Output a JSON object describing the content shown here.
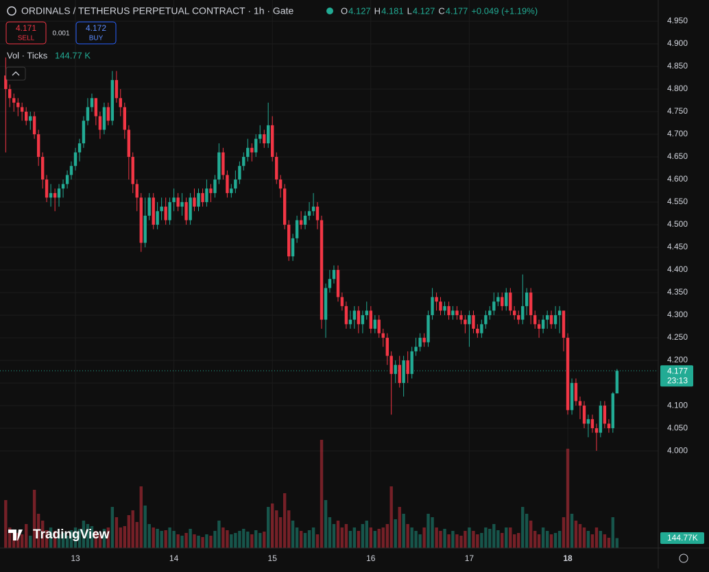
{
  "chart_data": {
    "type": "candlestick",
    "title": "ORDINALS / TETHERUS PERPETUAL CONTRACT · 1h · Gate",
    "legend_ohlc": [
      {
        "key": "O",
        "value": 4.127
      },
      {
        "key": "H",
        "value": 4.181
      },
      {
        "key": "L",
        "value": 4.127
      },
      {
        "key": "C",
        "value": 4.177
      }
    ],
    "change": "+0.049 (+1.19%)",
    "sell": {
      "price": "4.171",
      "label": "SELL"
    },
    "spread": "0.001",
    "buy": {
      "price": "4.172",
      "label": "BUY"
    },
    "volume_legend": {
      "name": "Vol · Ticks",
      "value": "144.77 K"
    },
    "volume_badge": "144.77K",
    "countdown": "23:13",
    "logo": "TradingView",
    "up_color": "#22ab94",
    "down_color": "#f23645",
    "grid": true,
    "xlim": [
      12.234,
      18.919
    ],
    "ylim": [
      3.785,
      4.997
    ],
    "xticks": [
      13,
      14,
      15,
      16,
      17,
      18
    ],
    "yticks": [
      {
        "value": 4.0,
        "label": "4.000"
      },
      {
        "value": 4.05,
        "label": "4.050"
      },
      {
        "value": 4.1,
        "label": "4.100"
      },
      {
        "value": 4.15,
        "label": "4.150"
      },
      {
        "value": 4.2,
        "label": "4.200"
      },
      {
        "value": 4.25,
        "label": "4.250"
      },
      {
        "value": 4.3,
        "label": "4.300"
      },
      {
        "value": 4.35,
        "label": "4.350"
      },
      {
        "value": 4.4,
        "label": "4.400"
      },
      {
        "value": 4.45,
        "label": "4.450"
      },
      {
        "value": 4.5,
        "label": "4.500"
      },
      {
        "value": 4.55,
        "label": "4.550"
      },
      {
        "value": 4.6,
        "label": "4.600"
      },
      {
        "value": 4.65,
        "label": "4.650"
      },
      {
        "value": 4.7,
        "label": "4.700"
      },
      {
        "value": 4.75,
        "label": "4.750"
      },
      {
        "value": 4.8,
        "label": "4.800"
      },
      {
        "value": 4.85,
        "label": "4.850"
      },
      {
        "value": 4.9,
        "label": "4.900"
      },
      {
        "value": 4.95,
        "label": "4.950"
      }
    ],
    "x": [
      12.292,
      12.333,
      12.375,
      12.417,
      12.458,
      12.5,
      12.542,
      12.583,
      12.625,
      12.667,
      12.708,
      12.75,
      12.792,
      12.833,
      12.875,
      12.917,
      12.958,
      13,
      13.042,
      13.083,
      13.125,
      13.167,
      13.208,
      13.25,
      13.292,
      13.333,
      13.375,
      13.417,
      13.458,
      13.5,
      13.542,
      13.583,
      13.625,
      13.667,
      13.708,
      13.75,
      13.792,
      13.833,
      13.875,
      13.917,
      13.958,
      14,
      14.042,
      14.083,
      14.125,
      14.167,
      14.208,
      14.25,
      14.292,
      14.333,
      14.375,
      14.417,
      14.458,
      14.5,
      14.542,
      14.583,
      14.625,
      14.667,
      14.708,
      14.75,
      14.792,
      14.833,
      14.875,
      14.917,
      14.958,
      15,
      15.042,
      15.083,
      15.125,
      15.167,
      15.208,
      15.25,
      15.292,
      15.333,
      15.375,
      15.417,
      15.458,
      15.5,
      15.542,
      15.583,
      15.625,
      15.667,
      15.708,
      15.75,
      15.792,
      15.833,
      15.875,
      15.917,
      15.958,
      16,
      16.042,
      16.083,
      16.125,
      16.167,
      16.208,
      16.25,
      16.292,
      16.333,
      16.375,
      16.417,
      16.458,
      16.5,
      16.542,
      16.583,
      16.625,
      16.667,
      16.708,
      16.75,
      16.792,
      16.833,
      16.875,
      16.917,
      16.958,
      17,
      17.042,
      17.083,
      17.125,
      17.167,
      17.208,
      17.25,
      17.292,
      17.333,
      17.375,
      17.417,
      17.458,
      17.5,
      17.542,
      17.583,
      17.625,
      17.667,
      17.708,
      17.75,
      17.792,
      17.833,
      17.875,
      17.917,
      17.958,
      18,
      18.042,
      18.083,
      18.125,
      18.167,
      18.208,
      18.25,
      18.292,
      18.333,
      18.375,
      18.417,
      18.458,
      18.5
    ],
    "open": [
      4.83,
      4.8,
      4.78,
      4.77,
      4.76,
      4.75,
      4.73,
      4.74,
      4.7,
      4.65,
      4.6,
      4.56,
      4.57,
      4.56,
      4.58,
      4.59,
      4.61,
      4.63,
      4.66,
      4.68,
      4.73,
      4.76,
      4.78,
      4.74,
      4.71,
      4.76,
      4.73,
      4.82,
      4.78,
      4.76,
      4.71,
      4.65,
      4.59,
      4.56,
      4.46,
      4.52,
      4.56,
      4.5,
      4.53,
      4.54,
      4.51,
      4.55,
      4.56,
      4.54,
      4.55,
      4.51,
      4.56,
      4.54,
      4.57,
      4.55,
      4.58,
      4.57,
      4.6,
      4.66,
      4.61,
      4.57,
      4.58,
      4.6,
      4.63,
      4.65,
      4.67,
      4.66,
      4.69,
      4.7,
      4.68,
      4.72,
      4.65,
      4.6,
      4.58,
      4.5,
      4.43,
      4.47,
      4.51,
      4.5,
      4.52,
      4.53,
      4.54,
      4.51,
      4.29,
      4.36,
      4.38,
      4.4,
      4.34,
      4.32,
      4.28,
      4.29,
      4.31,
      4.28,
      4.3,
      4.31,
      4.27,
      4.29,
      4.26,
      4.25,
      4.21,
      4.17,
      4.19,
      4.15,
      4.2,
      4.17,
      4.22,
      4.23,
      4.25,
      4.24,
      4.3,
      4.34,
      4.33,
      4.31,
      4.32,
      4.3,
      4.31,
      4.3,
      4.29,
      4.28,
      4.3,
      4.27,
      4.26,
      4.28,
      4.3,
      4.31,
      4.33,
      4.34,
      4.32,
      4.35,
      4.31,
      4.3,
      4.29,
      4.32,
      4.35,
      4.3,
      4.28,
      4.27,
      4.29,
      4.3,
      4.28,
      4.3,
      4.31,
      4.25,
      4.09,
      4.15,
      4.11,
      4.1,
      4.06,
      4.07,
      4.05,
      4.04,
      4.1,
      4.06,
      4.05,
      4.127
    ],
    "high": [
      4.87,
      4.81,
      4.79,
      4.78,
      4.77,
      4.76,
      4.75,
      4.75,
      4.71,
      4.66,
      4.61,
      4.59,
      4.58,
      4.59,
      4.6,
      4.62,
      4.64,
      4.67,
      4.69,
      4.74,
      4.78,
      4.79,
      4.78,
      4.75,
      4.77,
      4.77,
      4.84,
      4.84,
      4.8,
      4.77,
      4.72,
      4.66,
      4.6,
      4.57,
      4.56,
      4.57,
      4.57,
      4.55,
      4.56,
      4.56,
      4.56,
      4.58,
      4.57,
      4.57,
      4.56,
      4.57,
      4.58,
      4.58,
      4.58,
      4.6,
      4.59,
      4.61,
      4.68,
      4.67,
      4.62,
      4.59,
      4.62,
      4.64,
      4.66,
      4.69,
      4.68,
      4.7,
      4.72,
      4.71,
      4.77,
      4.74,
      4.66,
      4.61,
      4.59,
      4.51,
      4.48,
      4.52,
      4.53,
      4.53,
      4.55,
      4.57,
      4.55,
      4.52,
      4.37,
      4.4,
      4.41,
      4.41,
      4.35,
      4.33,
      4.31,
      4.32,
      4.32,
      4.31,
      4.33,
      4.32,
      4.3,
      4.3,
      4.27,
      4.26,
      4.22,
      4.2,
      4.21,
      4.21,
      4.22,
      4.23,
      4.25,
      4.26,
      4.26,
      4.31,
      4.36,
      4.35,
      4.34,
      4.33,
      4.33,
      4.32,
      4.32,
      4.31,
      4.3,
      4.31,
      4.31,
      4.28,
      4.29,
      4.31,
      4.32,
      4.35,
      4.35,
      4.35,
      4.36,
      4.36,
      4.32,
      4.31,
      4.39,
      4.36,
      4.36,
      4.31,
      4.29,
      4.3,
      4.31,
      4.31,
      4.32,
      4.32,
      4.31,
      4.26,
      4.16,
      4.16,
      4.12,
      4.11,
      4.08,
      4.08,
      4.06,
      4.11,
      4.11,
      4.07,
      4.13,
      4.181
    ],
    "low": [
      4.66,
      4.76,
      4.75,
      4.74,
      4.73,
      4.72,
      4.71,
      4.69,
      4.63,
      4.58,
      4.55,
      4.54,
      4.53,
      4.54,
      4.56,
      4.58,
      4.6,
      4.62,
      4.64,
      4.67,
      4.72,
      4.75,
      4.72,
      4.69,
      4.7,
      4.72,
      4.72,
      4.77,
      4.74,
      4.69,
      4.6,
      4.57,
      4.53,
      4.44,
      4.45,
      4.51,
      4.49,
      4.49,
      4.51,
      4.5,
      4.5,
      4.53,
      4.53,
      4.52,
      4.5,
      4.5,
      4.53,
      4.53,
      4.54,
      4.54,
      4.55,
      4.56,
      4.59,
      4.6,
      4.56,
      4.56,
      4.57,
      4.59,
      4.62,
      4.64,
      4.64,
      4.65,
      4.68,
      4.67,
      4.67,
      4.64,
      4.59,
      4.56,
      4.49,
      4.42,
      4.42,
      4.46,
      4.49,
      4.49,
      4.51,
      4.52,
      4.49,
      4.27,
      4.25,
      4.35,
      4.37,
      4.33,
      4.31,
      4.27,
      4.27,
      4.27,
      4.26,
      4.26,
      4.29,
      4.26,
      4.26,
      4.25,
      4.23,
      4.19,
      4.08,
      4.15,
      4.14,
      4.12,
      4.15,
      4.16,
      4.21,
      4.22,
      4.23,
      4.23,
      4.29,
      4.31,
      4.3,
      4.3,
      4.29,
      4.29,
      4.29,
      4.28,
      4.26,
      4.23,
      4.26,
      4.25,
      4.25,
      4.27,
      4.29,
      4.3,
      4.32,
      4.31,
      4.31,
      4.3,
      4.29,
      4.28,
      4.28,
      4.3,
      4.28,
      4.27,
      4.25,
      4.26,
      4.27,
      4.27,
      4.27,
      4.26,
      4.22,
      4.08,
      4.08,
      4.1,
      4.07,
      4.05,
      4.03,
      4.04,
      4.0,
      4.03,
      4.05,
      4.04,
      4.04,
      4.127
    ],
    "close": [
      4.8,
      4.78,
      4.77,
      4.76,
      4.75,
      4.73,
      4.74,
      4.7,
      4.65,
      4.6,
      4.56,
      4.57,
      4.56,
      4.58,
      4.59,
      4.61,
      4.63,
      4.66,
      4.68,
      4.73,
      4.76,
      4.78,
      4.74,
      4.71,
      4.76,
      4.73,
      4.82,
      4.78,
      4.76,
      4.71,
      4.65,
      4.59,
      4.56,
      4.46,
      4.52,
      4.56,
      4.5,
      4.53,
      4.54,
      4.51,
      4.55,
      4.56,
      4.54,
      4.55,
      4.51,
      4.56,
      4.54,
      4.57,
      4.55,
      4.58,
      4.57,
      4.6,
      4.66,
      4.61,
      4.57,
      4.58,
      4.6,
      4.63,
      4.65,
      4.67,
      4.66,
      4.69,
      4.7,
      4.68,
      4.72,
      4.65,
      4.6,
      4.58,
      4.5,
      4.43,
      4.47,
      4.51,
      4.5,
      4.52,
      4.53,
      4.54,
      4.51,
      4.29,
      4.36,
      4.38,
      4.4,
      4.34,
      4.32,
      4.28,
      4.29,
      4.31,
      4.28,
      4.3,
      4.31,
      4.27,
      4.29,
      4.26,
      4.25,
      4.21,
      4.17,
      4.19,
      4.15,
      4.2,
      4.17,
      4.22,
      4.23,
      4.25,
      4.24,
      4.3,
      4.34,
      4.33,
      4.31,
      4.32,
      4.3,
      4.31,
      4.3,
      4.29,
      4.28,
      4.3,
      4.27,
      4.26,
      4.28,
      4.3,
      4.31,
      4.33,
      4.34,
      4.32,
      4.35,
      4.31,
      4.3,
      4.29,
      4.32,
      4.35,
      4.3,
      4.28,
      4.27,
      4.29,
      4.3,
      4.28,
      4.3,
      4.31,
      4.25,
      4.09,
      4.15,
      4.11,
      4.1,
      4.06,
      4.07,
      4.05,
      4.04,
      4.1,
      4.06,
      4.05,
      4.127,
      4.177
    ],
    "volume": [
      700,
      300,
      250,
      220,
      200,
      350,
      180,
      850,
      500,
      400,
      260,
      300,
      250,
      200,
      220,
      180,
      260,
      300,
      280,
      400,
      350,
      320,
      250,
      200,
      280,
      300,
      600,
      450,
      300,
      320,
      480,
      550,
      380,
      900,
      620,
      350,
      300,
      280,
      250,
      260,
      300,
      250,
      200,
      180,
      220,
      280,
      200,
      180,
      160,
      200,
      180,
      250,
      400,
      300,
      260,
      200,
      220,
      250,
      280,
      240,
      200,
      260,
      220,
      240,
      600,
      650,
      550,
      450,
      800,
      550,
      400,
      300,
      250,
      220,
      260,
      300,
      200,
      1580,
      700,
      450,
      350,
      400,
      300,
      350,
      250,
      300,
      250,
      350,
      400,
      300,
      250,
      280,
      300,
      350,
      900,
      420,
      600,
      500,
      350,
      300,
      250,
      200,
      300,
      500,
      450,
      300,
      250,
      280,
      200,
      250,
      200,
      180,
      250,
      300,
      250,
      200,
      220,
      300,
      280,
      350,
      260,
      220,
      300,
      300,
      200,
      220,
      600,
      500,
      400,
      250,
      200,
      300,
      250,
      200,
      220,
      250,
      450,
      1450,
      500,
      400,
      350,
      300,
      250,
      200,
      300,
      250,
      200,
      150,
      450,
      144.77
    ]
  }
}
